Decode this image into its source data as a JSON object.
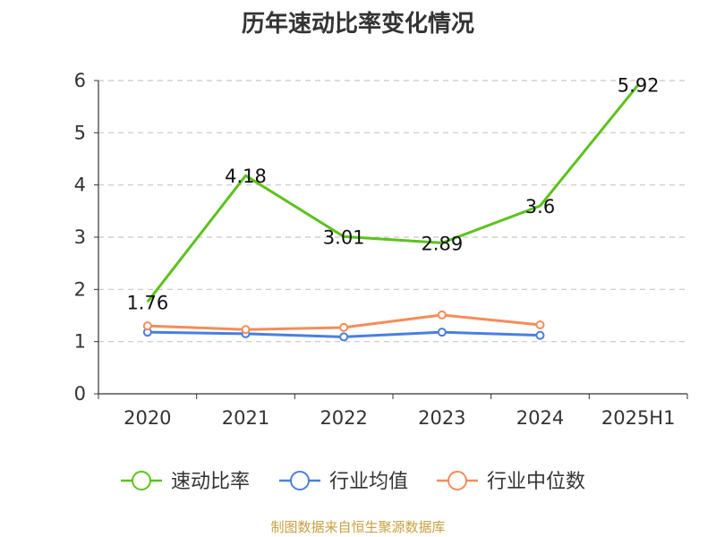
{
  "title": "历年速动比率变化情况",
  "source": "制图数据来自恒生聚源数据库",
  "colors": {
    "quick_ratio": "#5cc21c",
    "industry_mean": "#4a7fe0",
    "industry_median": "#f58c5a",
    "grid": "#c8c8c8",
    "axis": "#333333",
    "text": "#333333"
  },
  "chart_data": {
    "type": "line",
    "title": "历年速动比率变化情况",
    "categories": [
      "2020",
      "2021",
      "2022",
      "2023",
      "2024",
      "2025H1"
    ],
    "ylim": [
      0,
      6
    ],
    "yticks": [
      0,
      1,
      2,
      3,
      4,
      5,
      6
    ],
    "grid": true,
    "legend_position": "bottom",
    "series": [
      {
        "name": "速动比率",
        "values": [
          1.76,
          4.18,
          3.01,
          2.89,
          3.6,
          5.92
        ],
        "data_labels": [
          "1.76",
          "4.18",
          "3.01",
          "2.89",
          "3.6",
          "5.92"
        ]
      },
      {
        "name": "行业均值",
        "values": [
          1.18,
          1.15,
          1.09,
          1.18,
          1.12,
          null
        ]
      },
      {
        "name": "行业中位数",
        "values": [
          1.3,
          1.23,
          1.27,
          1.51,
          1.32,
          null
        ]
      }
    ]
  }
}
